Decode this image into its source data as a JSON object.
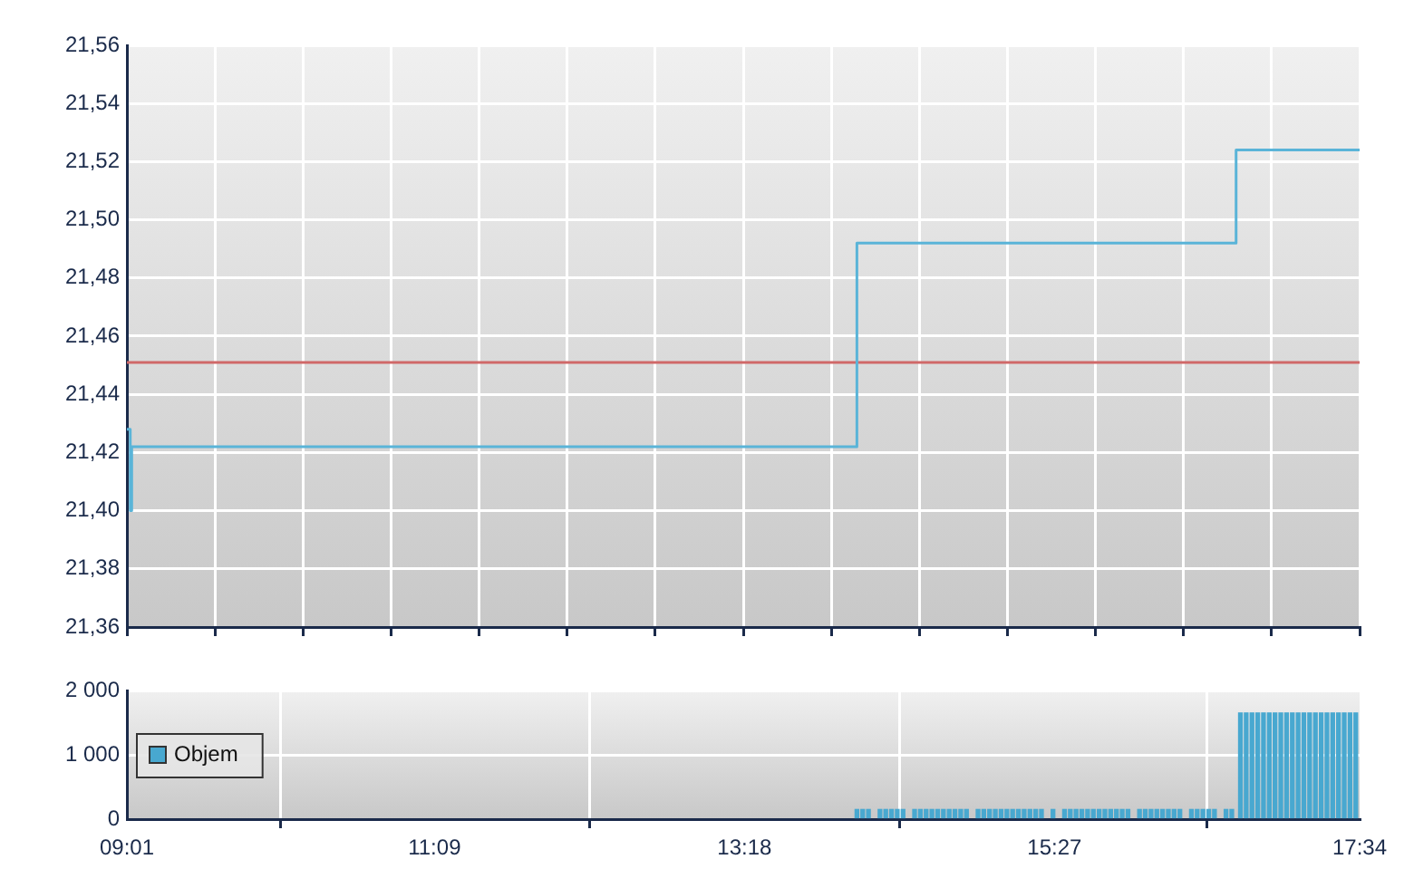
{
  "chart_data": [
    {
      "type": "step",
      "series": [
        {
          "color": "#5ab4d8",
          "x": [
            9.0167,
            9.04,
            9.05,
            14.08,
            16.71,
            17.5667
          ],
          "values": [
            21.428,
            21.4,
            21.422,
            21.492,
            21.524,
            21.524
          ]
        }
      ],
      "xlim": [
        9.0167,
        17.5667
      ],
      "xticks": [
        {
          "value": 9.0167,
          "label": null
        },
        {
          "value": 9.6274,
          "label": null
        },
        {
          "value": 10.2381,
          "label": null
        },
        {
          "value": 10.8488,
          "label": null
        },
        {
          "value": 11.4595,
          "label": null
        },
        {
          "value": 12.0702,
          "label": null
        },
        {
          "value": 12.681,
          "label": null
        },
        {
          "value": 13.2917,
          "label": null
        },
        {
          "value": 13.9024,
          "label": null
        },
        {
          "value": 14.5131,
          "label": null
        },
        {
          "value": 15.1238,
          "label": null
        },
        {
          "value": 15.7345,
          "label": null
        },
        {
          "value": 16.3452,
          "label": null
        },
        {
          "value": 16.956,
          "label": null
        },
        {
          "value": 17.5667,
          "label": null
        }
      ],
      "ylim": [
        21.36,
        21.56
      ],
      "yticks": [
        {
          "value": 21.36,
          "label": "21,36"
        },
        {
          "value": 21.38,
          "label": "21,38"
        },
        {
          "value": 21.4,
          "label": "21,40"
        },
        {
          "value": 21.42,
          "label": "21,42"
        },
        {
          "value": 21.44,
          "label": "21,44"
        },
        {
          "value": 21.46,
          "label": "21,46"
        },
        {
          "value": 21.48,
          "label": "21,48"
        },
        {
          "value": 21.5,
          "label": "21,50"
        },
        {
          "value": 21.52,
          "label": "21,52"
        },
        {
          "value": 21.54,
          "label": "21,54"
        },
        {
          "value": 21.56,
          "label": "21,56"
        }
      ],
      "ref_lines": [
        {
          "axis": "y",
          "value": 21.451,
          "color": "#d06868"
        }
      ],
      "grid": true,
      "tick_labels": "y",
      "legend": false
    },
    {
      "type": "bar",
      "series": [
        {
          "name": "Objem",
          "color": "#48a8d0",
          "x": [
            14.08,
            14.12,
            14.16,
            14.24,
            14.28,
            14.32,
            14.36,
            14.4,
            14.48,
            14.52,
            14.56,
            14.6,
            14.64,
            14.68,
            14.72,
            14.76,
            14.8,
            14.84,
            14.92,
            14.96,
            15.0,
            15.04,
            15.08,
            15.12,
            15.16,
            15.2,
            15.24,
            15.28,
            15.32,
            15.36,
            15.44,
            15.52,
            15.56,
            15.6,
            15.64,
            15.68,
            15.72,
            15.76,
            15.8,
            15.84,
            15.88,
            15.92,
            15.96,
            16.04,
            16.08,
            16.12,
            16.16,
            16.2,
            16.24,
            16.28,
            16.32,
            16.4,
            16.44,
            16.48,
            16.52,
            16.56,
            16.64,
            16.68,
            16.74,
            16.78,
            16.82,
            16.86,
            16.9,
            16.94,
            16.98,
            17.02,
            17.06,
            17.1,
            17.14,
            17.18,
            17.22,
            17.26,
            17.3,
            17.34,
            17.38,
            17.42,
            17.46,
            17.5,
            17.54
          ],
          "values": [
            150,
            150,
            150,
            150,
            150,
            150,
            150,
            150,
            150,
            150,
            150,
            150,
            150,
            150,
            150,
            150,
            150,
            150,
            150,
            150,
            150,
            150,
            150,
            150,
            150,
            150,
            150,
            150,
            150,
            150,
            150,
            150,
            150,
            150,
            150,
            150,
            150,
            150,
            150,
            150,
            150,
            150,
            150,
            150,
            150,
            150,
            150,
            150,
            150,
            150,
            150,
            150,
            150,
            150,
            150,
            150,
            150,
            150,
            1650,
            1650,
            1650,
            1650,
            1650,
            1650,
            1650,
            1650,
            1650,
            1650,
            1650,
            1650,
            1650,
            1650,
            1650,
            1650,
            1650,
            1650,
            1650,
            1650,
            1650
          ]
        }
      ],
      "xlim": [
        9.0167,
        17.5667
      ],
      "xticks": [
        {
          "value": 9.0167,
          "label": "09:01"
        },
        {
          "value": 11.15,
          "label": "11:09"
        },
        {
          "value": 13.3,
          "label": "13:18"
        },
        {
          "value": 15.45,
          "label": "15:27"
        },
        {
          "value": 17.5667,
          "label": "17:34"
        }
      ],
      "ylim": [
        0,
        2000
      ],
      "yticks": [
        {
          "value": 0,
          "label": "0"
        },
        {
          "value": 1000,
          "label": "1 000"
        },
        {
          "value": 2000,
          "label": "2 000"
        }
      ],
      "grid": true,
      "legend": "left"
    }
  ]
}
